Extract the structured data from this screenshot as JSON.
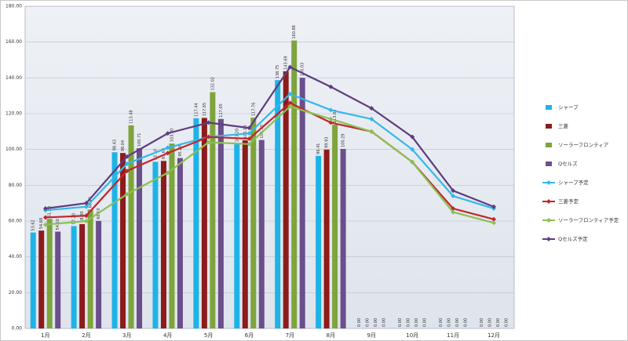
{
  "chart_data": {
    "type": "bar",
    "categories": [
      "1月",
      "2月",
      "3月",
      "4月",
      "5月",
      "6月",
      "7月",
      "8月",
      "9月",
      "10月",
      "11月",
      "12月"
    ],
    "ylim": [
      0,
      180
    ],
    "yticks": [
      {
        "value": 0,
        "label": "0.00"
      },
      {
        "value": 20,
        "label": "20.00"
      },
      {
        "value": 40,
        "label": "40.00"
      },
      {
        "value": 60,
        "label": "60.00"
      },
      {
        "value": 80,
        "label": "80.00"
      },
      {
        "value": 100,
        "label": "100.00"
      },
      {
        "value": 120,
        "label": "120.00"
      },
      {
        "value": 140,
        "label": "140.00"
      },
      {
        "value": 160,
        "label": "160.00"
      },
      {
        "value": 180,
        "label": "180.00"
      }
    ],
    "grid": true,
    "legend": "right",
    "series": [
      {
        "name": "シャープ",
        "type": "bar",
        "color": "#1eb3e8",
        "values": [
          53.62,
          57.2,
          98.43,
          93.1,
          117.44,
          103.2,
          138.75,
          96.41,
          0,
          0,
          0,
          0
        ],
        "value_labels": [
          "53.62",
          "57.20",
          "98.43",
          "93.10",
          "117.44",
          "103.20",
          "138.75",
          "96.41",
          "0.00",
          "0.00",
          "0.00",
          "0.00"
        ]
      },
      {
        "name": "三菱",
        "type": "bar",
        "color": "#8c1c1c",
        "values": [
          54.68,
          58.3,
          98.04,
          93.6,
          117.65,
          105.1,
          143.69,
          99.93,
          0,
          0,
          0,
          0
        ],
        "value_labels": [
          "54.68",
          "58.30",
          "98.04",
          "93.60",
          "117.65",
          "105.10",
          "143.69",
          "99.93",
          "0.00",
          "0.00",
          "0.00",
          "0.00"
        ]
      },
      {
        "name": "ソーラーフロンティア",
        "type": "bar",
        "color": "#7ea43c",
        "values": [
          61.2,
          66.4,
          113.48,
          103.3,
          132.02,
          117.76,
          160.88,
          113.8,
          0,
          0,
          0,
          0
        ],
        "value_labels": [
          "61.20",
          "66.40",
          "113.48",
          "103.30",
          "132.02",
          "117.76",
          "160.88",
          "113.80",
          "0.00",
          "0.00",
          "0.00",
          "0.00"
        ]
      },
      {
        "name": "Qセルズ",
        "type": "bar",
        "color": "#6b4f8c",
        "values": [
          54.1,
          60.1,
          100.71,
          95.2,
          117.05,
          105.3,
          140.03,
          100.29,
          0,
          0,
          0,
          0
        ],
        "value_labels": [
          "54.10",
          "60.10",
          "100.71",
          "95.20",
          "117.05",
          "105.30",
          "140.03",
          "100.29",
          "0.00",
          "0.00",
          "0.00",
          "0.00"
        ]
      },
      {
        "name": "シャープ予定",
        "type": "line",
        "color": "#33b8ea",
        "values": [
          66,
          68,
          92,
          101,
          107,
          109,
          131,
          122,
          117,
          100,
          74,
          67
        ]
      },
      {
        "name": "三菱予定",
        "type": "line",
        "color": "#c0262c",
        "values": [
          62,
          63,
          88,
          98,
          107,
          106,
          126,
          115,
          110,
          93,
          67,
          61
        ]
      },
      {
        "name": "ソーラーフロンティア予定",
        "type": "line",
        "color": "#8cc052",
        "values": [
          58,
          60,
          75,
          87,
          104,
          103,
          124,
          117,
          110,
          93,
          65,
          59
        ]
      },
      {
        "name": "Qセルズ予定",
        "type": "line",
        "color": "#5e3d80",
        "values": [
          67,
          70,
          96,
          109,
          115,
          112,
          146,
          135,
          123,
          107,
          77,
          68
        ]
      }
    ]
  }
}
